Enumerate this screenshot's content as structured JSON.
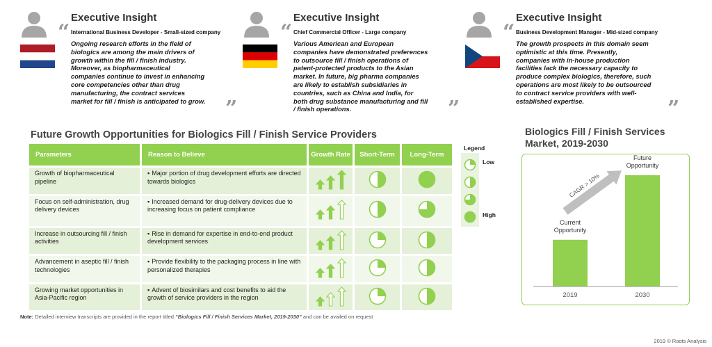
{
  "insights": [
    {
      "title": "Executive Insight",
      "role": "International Business Developer - Small-sized company",
      "quote_lines": [
        "Ongoing research efforts in the field of",
        "biologics are among the main drivers of",
        "growth within the fill / finish industry.",
        "Moreover, as biopharmaceutical",
        "companies continue to invest in enhancing",
        "core competencies other than drug",
        "manufacturing, the contract services",
        "market for fill / finish is anticipated to grow."
      ],
      "flag": "netherlands-flag-icon"
    },
    {
      "title": "Executive Insight",
      "role": "Chief Commercial Officer - Large company",
      "quote_lines": [
        "Various American and European",
        "companies have demonstrated preferences",
        "to outsource fill / finish operations of",
        "patent-protected  products to the Asian",
        "market. In future, big pharma companies",
        "are likely to establish  subsidiaries  in",
        "countries,  such  as China and India, for",
        "both drug substance  manufacturing and fill",
        "/ finish operations."
      ],
      "flag": "germany-flag-icon"
    },
    {
      "title": "Executive Insight",
      "role": "Business Development Manager - Mid-sized company",
      "quote_lines": [
        "The growth prospects  in this domain seem",
        "optimistic at this time. Presently,",
        "companies with in-house production",
        "facilities lack the necessary  capacity to",
        "produce complex biologics, therefore, such",
        "operations are most likely to be outsourced",
        "to contract service providers with well-",
        "established  expertise."
      ],
      "flag": "czech-flag-icon"
    }
  ],
  "opportunities": {
    "title": "Future Growth Opportunities for Biologics Fill / Finish Service Providers",
    "headers": {
      "parameters": "Parameters",
      "reason": "Reason to Believe",
      "growth": "Growth Rate",
      "short": "Short-Term",
      "long": "Long-Term"
    },
    "rows": [
      {
        "parameter": "Growth of biopharmaceutical pipeline",
        "reason": "Major portion of drug development  efforts are directed towards biologics",
        "growth_filled": 3,
        "short": 0.5,
        "long": 1.0
      },
      {
        "parameter": "Focus on self-administration, drug delivery  devices",
        "reason": "Increased demand for drug-delivery  devices due to increasing focus on patient compliance",
        "growth_filled": 2,
        "short": 0.5,
        "long": 0.75
      },
      {
        "parameter": "Increase in outsourcing fill / finish activities",
        "reason": "Rise in demand for expertise in end-to-end product development  services",
        "growth_filled": 2,
        "short": 0.25,
        "long": 0.5
      },
      {
        "parameter": "Advancement  in aseptic fill / finish technologies",
        "reason": "Provide flexibility to the packaging process in line with personalized therapies",
        "growth_filled": 2,
        "short": 0.25,
        "long": 0.5
      },
      {
        "parameter": "Growing market opportunities in Asia-Pacific region",
        "reason": "Advent of biosimilars and cost benefits to aid the growth of service providers  in the region",
        "growth_filled": 1,
        "short": 0.25,
        "long": 0.5
      }
    ]
  },
  "legend": {
    "title": "Legend",
    "low": "Low",
    "high": "High",
    "levels": [
      0.25,
      0.5,
      0.75,
      1.0
    ]
  },
  "chart": {
    "title_line1": "Biologics Fill / Finish Services",
    "title_line2": "Market, 2019-2030",
    "cagr_label": "CAGR > 10%"
  },
  "chart_data": {
    "type": "bar",
    "categories": [
      "2019",
      "2030"
    ],
    "bar_labels": [
      [
        "Current",
        "Opportunity"
      ],
      [
        "Future",
        "Opportunity"
      ]
    ],
    "values": [
      0.42,
      1.0
    ],
    "ylim": [
      0,
      1.0
    ],
    "grid": false,
    "bar_color": "#92d050"
  },
  "footer": {
    "note_label": "Note:",
    "note_text": " Detailed interview transcripts are provided in the report titled  ",
    "note_report": "“Biologics Fill / Finish Services Market, 2019-2030”",
    "note_tail": " and can be availed on request",
    "copyright": "2019 © Roots Analysis"
  },
  "colors": {
    "green": "#92d050",
    "row_light": "#f1f7ea",
    "row_dark": "#e4f0d7",
    "quote_gray": "#9a9a9a"
  }
}
